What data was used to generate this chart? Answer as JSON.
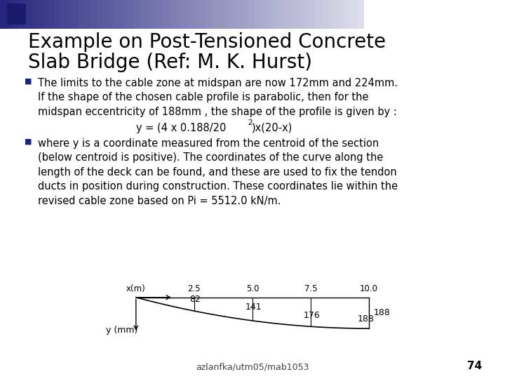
{
  "title_line1": "Example on Post-Tensioned Concrete",
  "title_line2": "Slab Bridge (Ref: M. K. Hurst)",
  "title_fontsize": 20,
  "bullet1_lines": [
    "The limits to the cable zone at midspan are now 172mm and 224mm.",
    "If the shape of the chosen cable profile is parabolic, then for the",
    "midspan eccentricity of 188mm , the shape of the profile is given by :"
  ],
  "formula_main": "y = (4 x 0.188/20",
  "formula_sup": "2",
  "formula_end": ")x(20-x)",
  "bullet2_lines": [
    "where y is a coordinate measured from the centroid of the section",
    "(below centroid is positive). The coordinates of the curve along the",
    "length of the deck can be found, and these are used to fix the tendon",
    "ducts in position during construction. These coordinates lie within the",
    "revised cable zone based on Pi = 5512.0 kN/m."
  ],
  "diagram_x_labels": [
    "x(m)",
    "2.5",
    "5.0",
    "7.5",
    "10.0"
  ],
  "diagram_y_values": [
    "82",
    "141",
    "176",
    "188"
  ],
  "diagram_y_label": "y (mm)",
  "footer": "azlanfka/utm05/mab1053",
  "page_num": "74",
  "bg_color": "#ffffff",
  "text_color": "#000000",
  "bullet_color": "#1a237e",
  "title_color": "#000000",
  "body_fontsize": 10.5,
  "footer_fontsize": 9
}
